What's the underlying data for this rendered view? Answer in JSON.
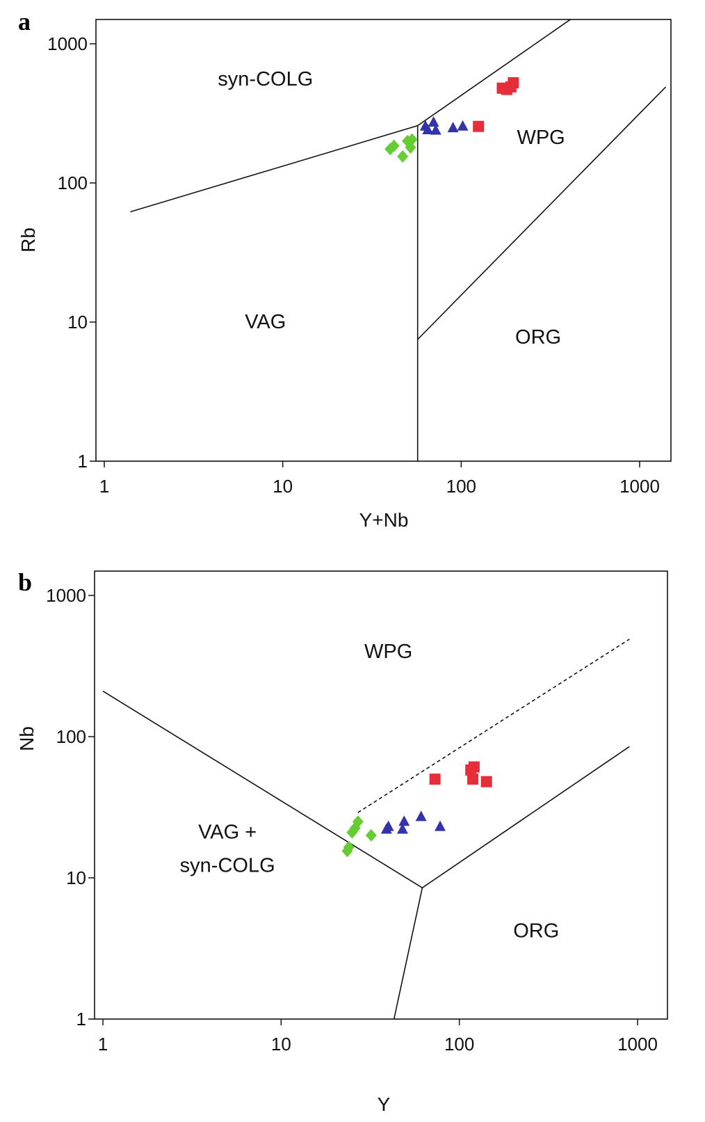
{
  "chart_data": [
    {
      "panel": "a",
      "type": "scatter",
      "xscale": "log",
      "yscale": "log",
      "xlabel": "Y+Nb",
      "ylabel": "Rb",
      "xlim": [
        1,
        1500
      ],
      "ylim": [
        1,
        1500
      ],
      "xticks": [
        1,
        10,
        100,
        1000
      ],
      "yticks": [
        1,
        10,
        100,
        1000
      ],
      "tick_labels_x": [
        "1",
        "10",
        "100",
        "1000"
      ],
      "tick_labels_y": [
        "1",
        "10",
        "100",
        "1000"
      ],
      "grid": false,
      "boundaries": [
        {
          "style": "solid",
          "points": [
            [
              1.4,
              62
            ],
            [
              57,
              258
            ],
            [
              410,
              1500
            ]
          ]
        },
        {
          "style": "solid",
          "points": [
            [
              57,
              1
            ],
            [
              57,
              258
            ]
          ]
        },
        {
          "style": "solid",
          "points": [
            [
              57,
              7.5
            ],
            [
              1400,
              490
            ]
          ]
        }
      ],
      "regions": [
        {
          "label": "syn-COLG",
          "x": 8,
          "y": 500
        },
        {
          "label": "WPG",
          "x": 280,
          "y": 190
        },
        {
          "label": "VAG",
          "x": 8,
          "y": 9
        },
        {
          "label": "ORG",
          "x": 270,
          "y": 7
        }
      ],
      "series": [
        {
          "marker": "diamond",
          "color": "#66cc33",
          "points": [
            [
              40,
              175
            ],
            [
              42,
              185
            ],
            [
              47,
              155
            ],
            [
              50,
              200
            ],
            [
              52,
              180
            ],
            [
              53,
              205
            ]
          ]
        },
        {
          "marker": "triangle",
          "color": "#3333aa",
          "points": [
            [
              63,
              255
            ],
            [
              65,
              240
            ],
            [
              70,
              272
            ],
            [
              72,
              238
            ],
            [
              90,
              248
            ],
            [
              102,
              255
            ]
          ]
        },
        {
          "marker": "square",
          "color": "#e62e3a",
          "points": [
            [
              125,
              255
            ],
            [
              170,
              480
            ],
            [
              180,
              470
            ],
            [
              190,
              490
            ],
            [
              196,
              525
            ]
          ]
        }
      ]
    },
    {
      "panel": "b",
      "type": "scatter",
      "xscale": "log",
      "yscale": "log",
      "xlabel": "Y",
      "ylabel": "Nb",
      "xlim": [
        1,
        1500
      ],
      "ylim": [
        1,
        1500
      ],
      "xticks": [
        1,
        10,
        100,
        1000
      ],
      "yticks": [
        1,
        10,
        100,
        1000
      ],
      "tick_labels_x": [
        "1",
        "10",
        "100",
        "1000"
      ],
      "tick_labels_y": [
        "1",
        "10",
        "100",
        "1000"
      ],
      "grid": false,
      "boundaries": [
        {
          "style": "solid",
          "points": [
            [
              1,
              210
            ],
            [
              62,
              8.5
            ]
          ]
        },
        {
          "style": "solid",
          "points": [
            [
              62,
              8.5
            ],
            [
              43,
              1
            ]
          ]
        },
        {
          "style": "solid",
          "points": [
            [
              62,
              8.5
            ],
            [
              900,
              85
            ]
          ]
        },
        {
          "style": "dashed",
          "points": [
            [
              27,
              29
            ],
            [
              900,
              490
            ]
          ]
        }
      ],
      "regions": [
        {
          "label": "WPG",
          "x": 40,
          "y": 360
        },
        {
          "label": "VAG +",
          "x": 5,
          "y": 19
        },
        {
          "label": "syn-COLG",
          "x": 5,
          "y": 11
        },
        {
          "label": "ORG",
          "x": 270,
          "y": 3.8
        }
      ],
      "series": [
        {
          "marker": "diamond",
          "color": "#66cc33",
          "points": [
            [
              23.5,
              15.5
            ],
            [
              24,
              16.5
            ],
            [
              25,
              21
            ],
            [
              26,
              22.5
            ],
            [
              27,
              25
            ],
            [
              32,
              20
            ]
          ]
        },
        {
          "marker": "triangle",
          "color": "#3333aa",
          "points": [
            [
              39,
              22
            ],
            [
              40,
              23
            ],
            [
              48,
              22
            ],
            [
              49,
              25
            ],
            [
              61,
              27
            ],
            [
              78,
              23
            ]
          ]
        },
        {
          "marker": "square",
          "color": "#e62e3a",
          "points": [
            [
              73,
              50
            ],
            [
              116,
              58
            ],
            [
              119,
              50
            ],
            [
              121,
              61
            ],
            [
              142,
              48
            ]
          ]
        }
      ]
    }
  ]
}
